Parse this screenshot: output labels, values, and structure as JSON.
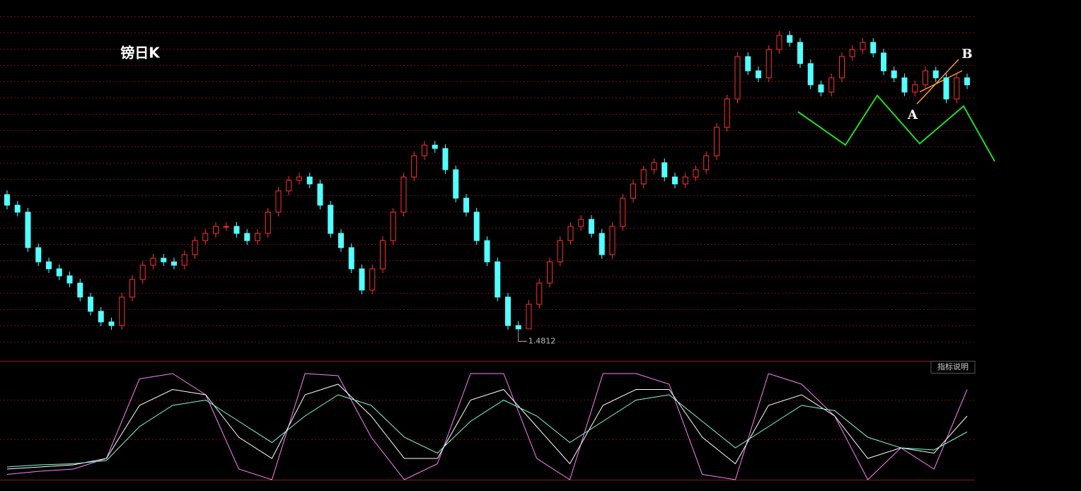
{
  "chart_data": [
    {
      "type": "candlestick",
      "title": "镑日K",
      "ylim": [
        1.47,
        1.63
      ],
      "open": [
        1.545,
        1.54,
        1.5367,
        1.52,
        1.5133,
        1.51,
        1.5067,
        1.5033,
        1.4967,
        1.49,
        1.485,
        1.4833,
        1.4967,
        1.505,
        1.5117,
        1.515,
        1.5133,
        1.5117,
        1.5167,
        1.5233,
        1.5267,
        1.53,
        1.53,
        1.5267,
        1.5233,
        1.5267,
        1.5367,
        1.5467,
        1.5517,
        1.5533,
        1.55,
        1.54,
        1.5267,
        1.52,
        1.51,
        1.5,
        1.51,
        1.5233,
        1.5367,
        1.5533,
        1.5633,
        1.5683,
        1.5667,
        1.5567,
        1.5433,
        1.5367,
        1.5233,
        1.5133,
        1.4967,
        1.4833,
        1.4817,
        1.4933,
        1.5033,
        1.5133,
        1.5233,
        1.53,
        1.5333,
        1.5267,
        1.5167,
        1.53,
        1.5433,
        1.55,
        1.5567,
        1.56,
        1.5533,
        1.55,
        1.5533,
        1.5567,
        1.5633,
        1.5767,
        1.59,
        1.61,
        1.6033,
        1.6,
        1.6133,
        1.62,
        1.6167,
        1.6067,
        1.5967,
        1.5933,
        1.6,
        1.61,
        1.6133,
        1.6167,
        1.6117,
        1.6033,
        1.6,
        1.5933,
        1.5967,
        1.6033,
        1.6,
        1.59,
        1.6
      ],
      "high": [
        1.547,
        1.542,
        1.5387,
        1.522,
        1.5153,
        1.512,
        1.5087,
        1.5053,
        1.4987,
        1.492,
        1.487,
        1.4987,
        1.507,
        1.5137,
        1.517,
        1.517,
        1.5153,
        1.5187,
        1.5253,
        1.5287,
        1.532,
        1.532,
        1.532,
        1.5287,
        1.5287,
        1.5387,
        1.5487,
        1.5537,
        1.5553,
        1.5553,
        1.552,
        1.542,
        1.5287,
        1.522,
        1.512,
        1.512,
        1.5253,
        1.5387,
        1.5553,
        1.5653,
        1.5703,
        1.5703,
        1.5687,
        1.5587,
        1.5453,
        1.5387,
        1.5253,
        1.5153,
        1.4987,
        1.4853,
        1.4953,
        1.5053,
        1.5153,
        1.5253,
        1.532,
        1.5353,
        1.5353,
        1.5287,
        1.532,
        1.5453,
        1.552,
        1.5587,
        1.562,
        1.562,
        1.5553,
        1.5553,
        1.5587,
        1.5653,
        1.5787,
        1.592,
        1.612,
        1.612,
        1.6053,
        1.6153,
        1.622,
        1.622,
        1.6187,
        1.6087,
        1.5987,
        1.602,
        1.612,
        1.6153,
        1.6187,
        1.6187,
        1.6137,
        1.6053,
        1.602,
        1.5987,
        1.6053,
        1.6053,
        1.602,
        1.602,
        1.602
      ],
      "low": [
        1.538,
        1.5347,
        1.518,
        1.5113,
        1.508,
        1.5047,
        1.5013,
        1.4947,
        1.488,
        1.483,
        1.4813,
        1.4813,
        1.4947,
        1.503,
        1.5097,
        1.5113,
        1.5097,
        1.5097,
        1.5147,
        1.5213,
        1.5247,
        1.528,
        1.5247,
        1.5213,
        1.5213,
        1.5247,
        1.5347,
        1.5447,
        1.5497,
        1.548,
        1.538,
        1.5247,
        1.518,
        1.508,
        1.498,
        1.498,
        1.508,
        1.5213,
        1.5347,
        1.5513,
        1.5613,
        1.5647,
        1.5547,
        1.5413,
        1.5347,
        1.5213,
        1.5113,
        1.4947,
        1.4813,
        1.4812,
        1.4817,
        1.4913,
        1.5013,
        1.5113,
        1.5213,
        1.528,
        1.5247,
        1.5147,
        1.5147,
        1.528,
        1.5413,
        1.548,
        1.5547,
        1.5513,
        1.548,
        1.548,
        1.5513,
        1.5547,
        1.5613,
        1.5747,
        1.588,
        1.6013,
        1.598,
        1.598,
        1.6113,
        1.6147,
        1.6047,
        1.5947,
        1.5913,
        1.5913,
        1.598,
        1.608,
        1.6113,
        1.6097,
        1.6013,
        1.598,
        1.5913,
        1.5913,
        1.5947,
        1.598,
        1.588,
        1.588,
        1.5947
      ],
      "close": [
        1.54,
        1.5367,
        1.52,
        1.5133,
        1.51,
        1.5067,
        1.5033,
        1.4967,
        1.49,
        1.485,
        1.4833,
        1.4967,
        1.505,
        1.5117,
        1.515,
        1.5133,
        1.5117,
        1.5167,
        1.5233,
        1.5267,
        1.53,
        1.53,
        1.5267,
        1.5233,
        1.5267,
        1.5367,
        1.5467,
        1.5517,
        1.5533,
        1.55,
        1.54,
        1.5267,
        1.52,
        1.51,
        1.5,
        1.51,
        1.5233,
        1.5367,
        1.5533,
        1.5633,
        1.5683,
        1.5667,
        1.5567,
        1.5433,
        1.5367,
        1.5233,
        1.5133,
        1.4967,
        1.4833,
        1.4817,
        1.4933,
        1.5033,
        1.5133,
        1.5233,
        1.53,
        1.5333,
        1.5267,
        1.5167,
        1.53,
        1.5433,
        1.55,
        1.5567,
        1.56,
        1.5533,
        1.55,
        1.5533,
        1.5567,
        1.5633,
        1.5767,
        1.59,
        1.61,
        1.6033,
        1.6,
        1.6133,
        1.62,
        1.6167,
        1.6067,
        1.5967,
        1.5933,
        1.6,
        1.61,
        1.6133,
        1.6167,
        1.6117,
        1.6033,
        1.6,
        1.5933,
        1.5967,
        1.6033,
        1.6,
        1.59,
        1.6,
        1.5967
      ],
      "up_color": "#ff3232",
      "down_color": "#54ffff",
      "annotations": [
        "A",
        "B"
      ]
    },
    {
      "type": "line",
      "ylim": [
        0,
        100
      ],
      "button": "指标说明",
      "series": [
        {
          "color": "#ff80ff",
          "values": [
            5,
            8,
            10,
            20,
            95,
            100,
            80,
            10,
            0,
            100,
            98,
            40,
            0,
            15,
            100,
            100,
            20,
            0,
            100,
            100,
            90,
            5,
            0,
            100,
            90,
            60,
            0,
            30,
            10,
            85
          ]
        },
        {
          "color": "#ffffff",
          "values": [
            10,
            12,
            14,
            20,
            70,
            85,
            80,
            40,
            20,
            80,
            90,
            60,
            20,
            20,
            75,
            85,
            50,
            15,
            70,
            85,
            85,
            40,
            15,
            70,
            80,
            60,
            20,
            30,
            25,
            60
          ]
        },
        {
          "color": "#7fffd4",
          "values": [
            12,
            14,
            15,
            18,
            50,
            70,
            75,
            55,
            35,
            60,
            80,
            70,
            40,
            25,
            55,
            75,
            60,
            35,
            55,
            75,
            80,
            55,
            30,
            50,
            70,
            65,
            40,
            30,
            28,
            45
          ]
        }
      ]
    }
  ]
}
